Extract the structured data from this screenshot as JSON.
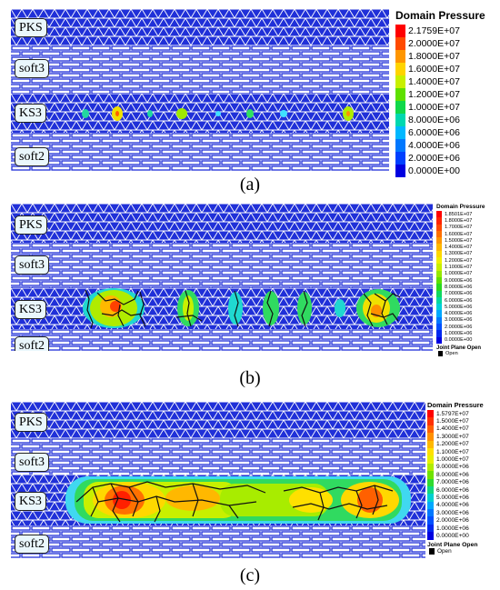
{
  "figure": {
    "panels": [
      {
        "id": "a",
        "caption": "(a)",
        "layer_labels": [
          "PKS",
          "soft3",
          "KS3",
          "soft2"
        ],
        "legend": {
          "title": "Domain Pressure",
          "values": [
            "2.1759E+07",
            "2.0000E+07",
            "1.8000E+07",
            "1.6000E+07",
            "1.4000E+07",
            "1.2000E+07",
            "1.0000E+07",
            "8.0000E+06",
            "6.0000E+06",
            "4.0000E+06",
            "2.0000E+06",
            "0.0000E+00"
          ],
          "colors": [
            "#ff0000",
            "#ff4a00",
            "#ff9600",
            "#ffd400",
            "#c8f000",
            "#5ee000",
            "#10d84a",
            "#00d8b0",
            "#00b8ff",
            "#0078ff",
            "#0040ff",
            "#0000e0"
          ]
        }
      },
      {
        "id": "b",
        "caption": "(b)",
        "layer_labels": [
          "PKS",
          "soft3",
          "KS3",
          "soft2"
        ],
        "legend": {
          "title": "Domain Pressure",
          "values": [
            "1.8501E+07",
            "1.8000E+07",
            "1.7000E+07",
            "1.6000E+07",
            "1.5000E+07",
            "1.4000E+07",
            "1.3000E+07",
            "1.2000E+07",
            "1.1000E+07",
            "1.0000E+07",
            "9.0000E+06",
            "8.0000E+06",
            "7.0000E+06",
            "6.0000E+06",
            "5.0000E+06",
            "4.0000E+06",
            "3.0000E+06",
            "2.0000E+06",
            "1.0000E+06",
            "0.0000E+00"
          ],
          "colors": [
            "#ff0000",
            "#ff2400",
            "#ff4a00",
            "#ff7000",
            "#ff9600",
            "#ffb800",
            "#ffd800",
            "#f0f000",
            "#c8f000",
            "#96e800",
            "#5ee000",
            "#2ada20",
            "#10d860",
            "#00d8a0",
            "#00d0d8",
            "#00a8ff",
            "#0078ff",
            "#0050ff",
            "#0028f0",
            "#0000e0"
          ],
          "extra_title": "Joint Plane Open",
          "extra_item": "Open"
        }
      },
      {
        "id": "c",
        "caption": "(c)",
        "layer_labels": [
          "PKS",
          "soft3",
          "KS3",
          "soft2"
        ],
        "legend": {
          "title": "Domain Pressure",
          "values": [
            "1.5797E+07",
            "1.5000E+07",
            "1.4000E+07",
            "1.3000E+07",
            "1.2000E+07",
            "1.1000E+07",
            "1.0000E+07",
            "9.0000E+06",
            "8.0000E+06",
            "7.0000E+06",
            "6.0000E+06",
            "5.0000E+06",
            "4.0000E+06",
            "3.0000E+06",
            "2.0000E+06",
            "1.0000E+06",
            "0.0000E+00"
          ],
          "colors": [
            "#ff0000",
            "#ff3000",
            "#ff6000",
            "#ff9000",
            "#ffb800",
            "#ffe000",
            "#e8f000",
            "#b0ec00",
            "#70e200",
            "#30da30",
            "#10d880",
            "#00d0d0",
            "#00a8ff",
            "#0078ff",
            "#0050ff",
            "#0028f0",
            "#0000e0"
          ],
          "extra_title": "Joint Plane Open",
          "extra_item": "Open"
        }
      }
    ]
  }
}
